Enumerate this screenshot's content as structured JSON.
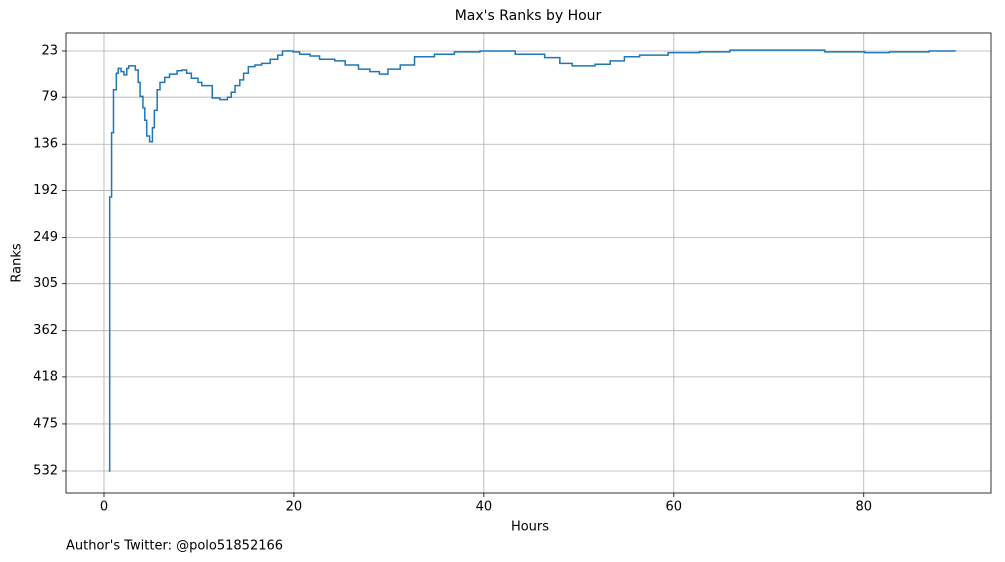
{
  "chart_data": {
    "type": "line",
    "step": "post",
    "title": "Max's Ranks by Hour",
    "xlabel": "Hours",
    "ylabel": "Ranks",
    "footer": "Author's Twitter: @polo51852166",
    "x": [
      0.5,
      0.6,
      0.8,
      1.0,
      1.3,
      1.5,
      1.8,
      2.1,
      2.4,
      2.6,
      3.3,
      3.6,
      3.8,
      4.1,
      4.3,
      4.5,
      4.8,
      5.1,
      5.3,
      5.6,
      5.9,
      6.4,
      6.9,
      7.7,
      8.2,
      8.7,
      9.2,
      9.9,
      10.3,
      11.4,
      12.2,
      13.0,
      13.4,
      13.8,
      14.3,
      14.7,
      15.2,
      15.9,
      16.6,
      17.5,
      18.3,
      18.8,
      19.9,
      20.6,
      21.7,
      22.7,
      24.3,
      25.4,
      26.8,
      28.0,
      29.0,
      29.9,
      31.2,
      32.7,
      34.8,
      36.9,
      39.6,
      43.3,
      46.4,
      48.0,
      49.3,
      51.7,
      53.3,
      54.8,
      56.4,
      59.4,
      62.7,
      65.9,
      73.3,
      75.9,
      80.1,
      82.7,
      86.9,
      89.6
    ],
    "values": [
      532,
      200,
      122,
      70,
      50,
      44,
      48,
      52,
      44,
      41,
      46,
      61,
      78,
      92,
      107,
      126,
      133,
      116,
      95,
      70,
      61,
      55,
      51,
      47,
      46,
      50,
      56,
      61,
      65,
      80,
      82,
      79,
      73,
      65,
      58,
      50,
      42,
      40,
      38,
      33,
      28,
      23,
      24,
      27,
      29,
      33,
      35,
      40,
      45,
      48,
      51,
      45,
      40,
      30,
      27,
      24,
      23,
      27,
      31,
      38,
      41,
      39,
      35,
      30,
      28,
      25,
      24,
      22,
      22,
      24,
      25,
      24,
      23,
      22
    ],
    "color": "#1f77b4",
    "xlim": [
      -4,
      93.4
    ],
    "xticks": [
      0,
      20,
      40,
      60,
      80
    ],
    "ylim": [
      558.7,
      1.2
    ],
    "yticks": [
      23,
      79,
      136,
      192,
      249,
      305,
      362,
      418,
      475,
      532
    ],
    "grid": true
  }
}
